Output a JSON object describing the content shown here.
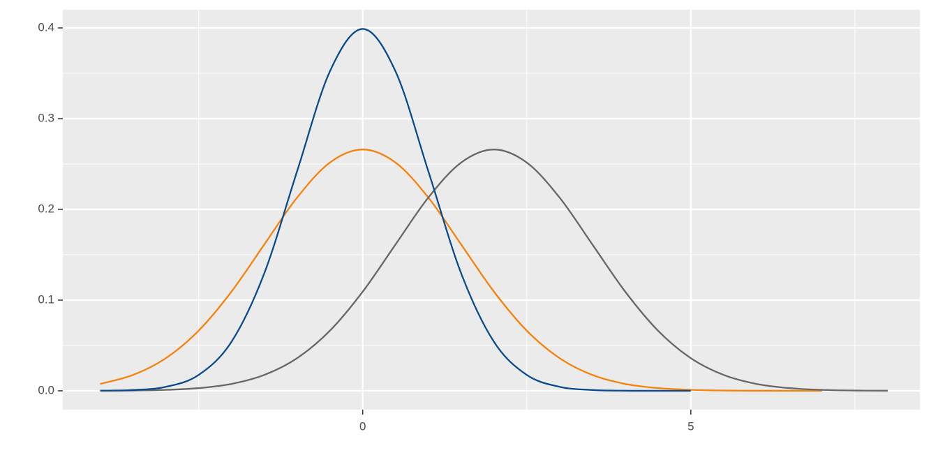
{
  "chart_data": {
    "type": "line",
    "x": [
      -4,
      -3.5,
      -3,
      -2.5,
      -2,
      -1.5,
      -1,
      -0.5,
      0,
      0.5,
      1,
      1.5,
      2,
      2.5,
      3,
      3.5,
      4,
      4.5,
      5,
      5.5,
      6,
      6.5,
      7,
      7.5,
      8
    ],
    "series": [
      {
        "color": "#f5820a",
        "values": [
          0.0076,
          0.0175,
          0.036,
          0.0663,
          0.1093,
          0.1613,
          0.213,
          0.2516,
          0.266,
          0.2516,
          0.213,
          0.1613,
          0.1093,
          0.0663,
          0.036,
          0.0175,
          0.0076,
          0.003,
          0.001,
          0.0003,
          0.0001,
          0,
          0,
          null,
          null
        ]
      },
      {
        "color": "#666666",
        "values": [
          0.0001,
          0.0003,
          0.001,
          0.003,
          0.0076,
          0.0175,
          0.036,
          0.0663,
          0.1093,
          0.1613,
          0.213,
          0.2516,
          0.266,
          0.2516,
          0.213,
          0.1613,
          0.1093,
          0.0663,
          0.036,
          0.0175,
          0.0076,
          0.003,
          0.001,
          0.0003,
          0.0001
        ]
      },
      {
        "color": "#0a4a8c",
        "values": [
          0.0001,
          0.0009,
          0.0044,
          0.0175,
          0.054,
          0.1295,
          0.242,
          0.3521,
          0.3989,
          0.3521,
          0.242,
          0.1295,
          0.054,
          0.0175,
          0.0044,
          0.0009,
          0.0001,
          0,
          0,
          null,
          null,
          null,
          null,
          null,
          null
        ]
      }
    ],
    "xlim": [
      -4.57,
      8.49
    ],
    "xticks": [
      0,
      5
    ],
    "xminor": [
      -2.5,
      2.5,
      7.5
    ],
    "ylim": [
      -0.0208,
      0.42
    ],
    "yticks": [
      {
        "value": 0,
        "label": "0.0"
      },
      0.1,
      0.2,
      0.3,
      0.4
    ],
    "yminor": [
      0.05,
      0.15,
      0.25,
      0.35
    ],
    "grid": true
  }
}
